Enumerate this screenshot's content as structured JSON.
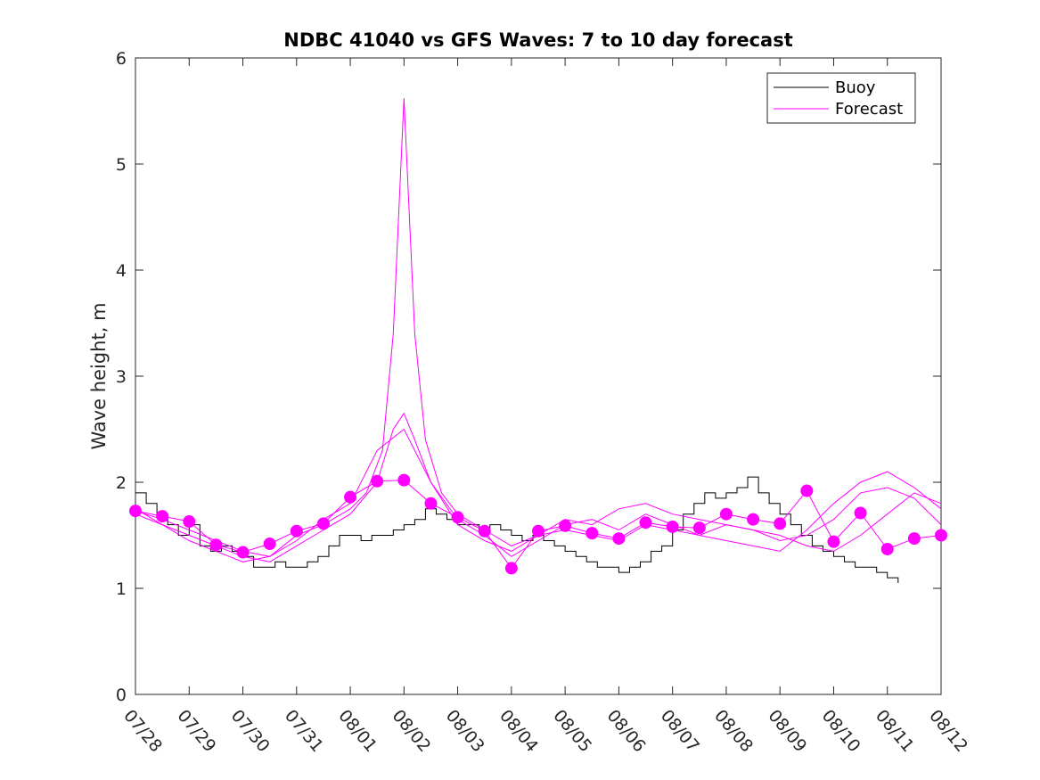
{
  "chart_data": {
    "type": "line",
    "title": "NDBC 41040 vs GFS Waves: 7 to 10 day forecast",
    "xlabel": "",
    "ylabel": "Wave height, m",
    "x_ticks": [
      "07/28",
      "07/29",
      "07/30",
      "07/31",
      "08/01",
      "08/02",
      "08/03",
      "08/04",
      "08/05",
      "08/06",
      "08/07",
      "08/08",
      "08/09",
      "08/10",
      "08/11",
      "08/12"
    ],
    "xlim": [
      0,
      15
    ],
    "ylim": [
      0,
      6
    ],
    "y_ticks": [
      0,
      1,
      2,
      3,
      4,
      5,
      6
    ],
    "grid": false,
    "legend": {
      "position": "top-right",
      "entries": [
        "Buoy",
        "Forecast"
      ]
    },
    "colors": {
      "buoy": "#000000",
      "forecast": "#ff00ff"
    },
    "series": [
      {
        "name": "Buoy",
        "x": [
          0.0,
          0.2,
          0.4,
          0.6,
          0.8,
          1.0,
          1.2,
          1.4,
          1.6,
          1.8,
          2.0,
          2.2,
          2.4,
          2.6,
          2.8,
          3.0,
          3.2,
          3.4,
          3.6,
          3.8,
          4.0,
          4.2,
          4.4,
          4.6,
          4.8,
          5.0,
          5.2,
          5.4,
          5.6,
          5.8,
          6.0,
          6.2,
          6.4,
          6.6,
          6.8,
          7.0,
          7.2,
          7.4,
          7.6,
          7.8,
          8.0,
          8.2,
          8.4,
          8.6,
          8.8,
          9.0,
          9.2,
          9.4,
          9.6,
          9.8,
          10.0,
          10.2,
          10.4,
          10.6,
          10.8,
          11.0,
          11.2,
          11.4,
          11.6,
          11.8,
          12.0,
          12.2,
          12.4,
          12.6,
          12.8,
          13.0,
          13.2,
          13.4,
          13.6,
          13.8,
          14.0,
          14.2
        ],
        "values": [
          1.9,
          1.8,
          1.7,
          1.6,
          1.5,
          1.6,
          1.4,
          1.35,
          1.4,
          1.35,
          1.3,
          1.2,
          1.2,
          1.25,
          1.2,
          1.2,
          1.25,
          1.3,
          1.4,
          1.5,
          1.5,
          1.45,
          1.5,
          1.5,
          1.55,
          1.6,
          1.65,
          1.75,
          1.7,
          1.65,
          1.6,
          1.6,
          1.55,
          1.6,
          1.55,
          1.5,
          1.45,
          1.5,
          1.45,
          1.4,
          1.35,
          1.3,
          1.25,
          1.2,
          1.2,
          1.15,
          1.2,
          1.25,
          1.35,
          1.4,
          1.55,
          1.7,
          1.8,
          1.9,
          1.85,
          1.9,
          1.95,
          2.05,
          1.9,
          1.8,
          1.7,
          1.6,
          1.5,
          1.4,
          1.35,
          1.3,
          1.25,
          1.2,
          1.2,
          1.15,
          1.1,
          1.05
        ]
      },
      {
        "name": "Forecast",
        "x": [
          0.0,
          0.5,
          1.0,
          1.5,
          2.0,
          2.5,
          3.0,
          3.5,
          4.0,
          4.5,
          5.0,
          5.5,
          6.0,
          6.5,
          7.0,
          7.5,
          8.0,
          8.5,
          9.0,
          9.5,
          10.0,
          10.5,
          11.0,
          11.5,
          12.0,
          12.5,
          13.0,
          13.5,
          14.0,
          14.5,
          15.0
        ],
        "values": [
          1.73,
          1.68,
          1.63,
          1.41,
          1.34,
          1.42,
          1.54,
          1.61,
          1.86,
          2.01,
          2.02,
          1.8,
          1.67,
          1.54,
          1.19,
          1.54,
          1.59,
          1.52,
          1.47,
          1.62,
          1.58,
          1.57,
          1.7,
          1.65,
          1.61,
          1.92,
          1.44,
          1.71,
          1.37,
          1.47,
          1.5
        ]
      },
      {
        "name": "",
        "x": [
          0.0,
          0.5,
          1.0,
          1.5,
          2.0,
          2.5,
          3.0,
          3.5,
          4.0,
          4.3,
          4.6,
          4.8,
          5.0,
          5.2,
          5.4,
          5.7,
          6.0,
          6.5,
          7.0,
          7.5,
          8.0,
          8.5,
          9.0,
          9.5,
          10.0,
          10.5,
          11.0,
          11.5,
          12.0,
          12.5,
          13.0,
          13.5,
          14.0,
          14.5,
          15.0
        ],
        "values": [
          1.73,
          1.65,
          1.55,
          1.45,
          1.35,
          1.3,
          1.5,
          1.6,
          1.75,
          1.9,
          2.3,
          3.4,
          5.62,
          3.4,
          2.4,
          1.9,
          1.7,
          1.55,
          1.4,
          1.5,
          1.55,
          1.5,
          1.45,
          1.6,
          1.55,
          1.5,
          1.6,
          1.55,
          1.5,
          1.4,
          1.35,
          1.5,
          1.7,
          1.9,
          1.8
        ]
      },
      {
        "name": "",
        "x": [
          0.0,
          0.5,
          1.0,
          1.5,
          2.0,
          2.5,
          3.0,
          3.5,
          4.0,
          4.5,
          4.8,
          5.0,
          5.2,
          5.5,
          6.0,
          6.5,
          7.0,
          7.5,
          8.0,
          8.5,
          9.0,
          9.5,
          10.0,
          10.5,
          11.0,
          11.5,
          12.0,
          12.5,
          13.0,
          13.5,
          14.0,
          14.5,
          15.0
        ],
        "values": [
          1.7,
          1.6,
          1.5,
          1.4,
          1.3,
          1.25,
          1.4,
          1.55,
          1.7,
          2.0,
          2.5,
          2.65,
          2.4,
          2.0,
          1.65,
          1.5,
          1.3,
          1.45,
          1.6,
          1.65,
          1.55,
          1.7,
          1.6,
          1.5,
          1.45,
          1.4,
          1.35,
          1.55,
          1.8,
          2.0,
          2.1,
          1.95,
          1.75
        ]
      },
      {
        "name": "",
        "x": [
          0.0,
          0.5,
          1.0,
          1.5,
          2.0,
          2.5,
          3.0,
          3.5,
          4.0,
          4.5,
          5.0,
          5.5,
          6.0,
          6.5,
          7.0,
          7.5,
          8.0,
          8.5,
          9.0,
          9.5,
          10.0,
          10.5,
          11.0,
          11.5,
          12.0,
          12.5,
          13.0,
          13.5,
          14.0,
          14.5,
          15.0
        ],
        "values": [
          1.75,
          1.6,
          1.45,
          1.35,
          1.25,
          1.3,
          1.45,
          1.65,
          1.8,
          2.3,
          2.5,
          2.0,
          1.6,
          1.45,
          1.35,
          1.5,
          1.65,
          1.6,
          1.75,
          1.8,
          1.7,
          1.65,
          1.6,
          1.55,
          1.45,
          1.5,
          1.65,
          1.9,
          1.95,
          1.85,
          1.6
        ]
      }
    ]
  }
}
